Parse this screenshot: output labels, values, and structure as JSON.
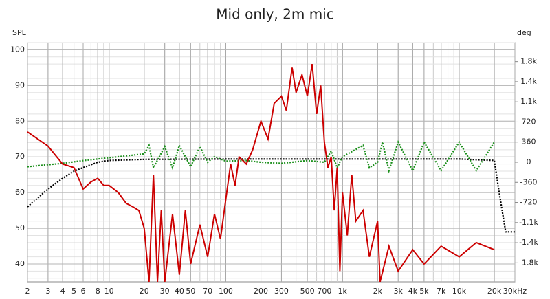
{
  "chart_data": {
    "type": "line",
    "title": "Mid only, 2m mic",
    "y_label": "SPL",
    "y2_label": "deg",
    "xscale": "log",
    "grid": true,
    "xlim": [
      2,
      30000
    ],
    "ylim": [
      35,
      102
    ],
    "y2lim": [
      -2140,
      2140
    ],
    "xticks": [
      2,
      3,
      4,
      5,
      6,
      8,
      10,
      20,
      30,
      40,
      50,
      70,
      100,
      200,
      300,
      500,
      700,
      {
        "value": 1000,
        "label": "1k"
      },
      {
        "value": 2000,
        "label": "2k"
      },
      {
        "value": 3000,
        "label": "3k"
      },
      {
        "value": 4000,
        "label": "4k"
      },
      {
        "value": 5000,
        "label": "5k"
      },
      {
        "value": 7000,
        "label": "7k"
      },
      {
        "value": 10000,
        "label": "10k"
      },
      {
        "value": 20000,
        "label": "20k"
      },
      {
        "value": 30000,
        "label": "30kHz"
      }
    ],
    "yticks": [
      40,
      50,
      60,
      70,
      80,
      90,
      100
    ],
    "y2ticks": [
      {
        "value": 1800,
        "label": "1.8k"
      },
      {
        "value": 1440,
        "label": "1.4k"
      },
      {
        "value": 1080,
        "label": "1.1k"
      },
      720,
      360,
      0,
      -360,
      -720,
      {
        "value": -1080,
        "label": "-1.1k"
      },
      {
        "value": -1440,
        "label": "-1.4k"
      },
      {
        "value": -1800,
        "label": "-1.8k"
      }
    ],
    "series": [
      {
        "color": "#000000",
        "dash": true,
        "x": [
          2,
          3,
          4,
          5,
          6,
          8,
          10,
          20,
          100,
          1000,
          10000,
          20000,
          22000,
          25000,
          30000
        ],
        "values": [
          56,
          61,
          64,
          66,
          67,
          68.5,
          69,
          69.3,
          69.4,
          69.4,
          69.4,
          69,
          60,
          49,
          49
        ]
      },
      {
        "color": "#1a8f1a",
        "dash": true,
        "axis": "y2",
        "x": [
          2,
          4,
          6,
          10,
          15,
          20,
          22,
          24,
          30,
          35,
          40,
          50,
          60,
          70,
          80,
          100,
          150,
          200,
          300,
          500,
          700,
          800,
          900,
          1000,
          1500,
          1700,
          2000,
          2200,
          2500,
          3000,
          4000,
          5000,
          7000,
          10000,
          14000,
          20000
        ],
        "values": [
          -80,
          -20,
          30,
          80,
          120,
          150,
          300,
          -100,
          280,
          -100,
          300,
          -80,
          280,
          0,
          100,
          20,
          30,
          0,
          -20,
          30,
          0,
          200,
          -100,
          100,
          300,
          -100,
          0,
          360,
          -150,
          360,
          -150,
          360,
          -150,
          360,
          -150,
          360
        ]
      },
      {
        "color": "#cc0000",
        "dash": false,
        "x": [
          2,
          3,
          4,
          5,
          6,
          7,
          8,
          9,
          10,
          12,
          14,
          16,
          18,
          20,
          22,
          24,
          26,
          28,
          30,
          35,
          40,
          45,
          50,
          60,
          70,
          80,
          90,
          100,
          110,
          120,
          130,
          150,
          170,
          200,
          230,
          260,
          300,
          330,
          370,
          400,
          450,
          500,
          550,
          600,
          650,
          700,
          750,
          800,
          850,
          900,
          950,
          1000,
          1100,
          1200,
          1300,
          1500,
          1700,
          2000,
          2100,
          2500,
          3000,
          4000,
          5000,
          7000,
          10000,
          14000,
          20000
        ],
        "values": [
          77,
          73,
          68,
          67,
          61,
          63,
          64,
          62,
          62,
          60,
          57,
          56,
          55,
          50,
          35,
          65,
          35,
          55,
          35,
          54,
          37,
          55,
          40,
          51,
          42,
          54,
          47,
          58,
          68,
          62,
          70,
          68,
          72,
          80,
          75,
          85,
          87,
          83,
          95,
          88,
          93,
          87,
          96,
          82,
          90,
          74,
          67,
          70,
          55,
          67,
          38,
          60,
          48,
          65,
          52,
          55,
          42,
          52,
          35,
          45,
          38,
          44,
          40,
          45,
          42,
          46,
          44
        ]
      }
    ]
  }
}
